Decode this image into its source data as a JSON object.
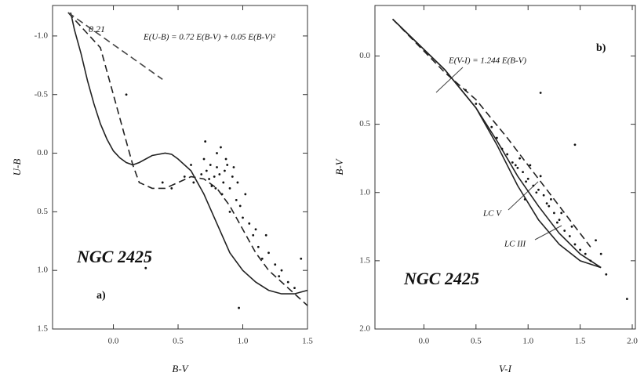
{
  "chart_data": [
    {
      "type": "scatter",
      "xlabel": "B-V",
      "ylabel": "U-B",
      "xlim": [
        -0.47,
        1.5
      ],
      "ylim": [
        -1.26,
        1.5
      ],
      "y_inverted": true,
      "xticks": [
        {
          "value": 0,
          "label": "0.0"
        },
        0.5,
        {
          "value": 1,
          "label": "1.0"
        },
        1.5
      ],
      "yticks": [
        {
          "value": -1,
          "label": "-1.0"
        },
        -0.5,
        {
          "value": 0,
          "label": "0.0"
        },
        0.5,
        {
          "value": 1,
          "label": "1.0"
        },
        1.5
      ],
      "annotations": [
        "0.21",
        "E(U-B) = 0.72 E(B-V) + 0.05 E(B-V)²",
        "NGC 2425",
        "a)"
      ],
      "series": [
        {
          "mark": "line",
          "color": "#222",
          "dashed": false,
          "x": [
            -0.33,
            -0.3,
            -0.25,
            -0.2,
            -0.15,
            -0.1,
            -0.05,
            0.0,
            0.05,
            0.1,
            0.15,
            0.2,
            0.3,
            0.4,
            0.45,
            0.5,
            0.6,
            0.7,
            0.8,
            0.9,
            1.0,
            1.1,
            1.2,
            1.3,
            1.4,
            1.5
          ],
          "values": [
            -1.2,
            -1.05,
            -0.85,
            -0.62,
            -0.42,
            -0.25,
            -0.12,
            -0.02,
            0.04,
            0.08,
            0.1,
            0.08,
            0.02,
            0.0,
            0.01,
            0.05,
            0.15,
            0.35,
            0.6,
            0.85,
            1.0,
            1.1,
            1.17,
            1.2,
            1.2,
            1.17
          ]
        },
        {
          "mark": "line",
          "color": "#222",
          "dashed": true,
          "x": [
            -0.35,
            -0.1,
            0.0,
            0.1,
            0.15,
            0.2,
            0.3,
            0.4,
            0.5,
            0.6,
            0.7,
            0.8,
            0.9,
            1.0,
            1.1,
            1.2,
            1.3,
            1.4,
            1.5
          ],
          "values": [
            -1.2,
            -0.9,
            -0.5,
            -0.1,
            0.1,
            0.25,
            0.3,
            0.3,
            0.25,
            0.2,
            0.22,
            0.3,
            0.45,
            0.65,
            0.85,
            1.0,
            1.1,
            1.2,
            1.3
          ]
        },
        {
          "mark": "line",
          "color": "#444",
          "dashed": true,
          "x": [
            -0.35,
            0.38
          ],
          "values": [
            -1.2,
            -0.63
          ]
        },
        {
          "mark": "point",
          "color": "#111",
          "x": [
            0.72,
            0.75,
            0.78,
            0.8,
            0.82,
            0.85,
            0.88,
            0.9,
            0.7,
            0.76,
            0.84,
            0.92,
            0.95,
            0.98,
            0.8,
            0.86,
            0.74,
            0.9,
            1.0,
            1.02,
            1.05,
            1.08,
            1.1,
            0.96,
            0.87,
            0.79,
            0.68,
            0.62,
            0.55,
            0.45,
            0.38,
            1.12,
            1.15,
            1.2,
            1.25,
            1.3,
            1.35,
            1.4,
            1.18,
            1.28,
            0.93,
            0.83,
            0.1,
            0.25,
            0.97,
            0.71,
            1.45,
            0.6
          ],
          "values": [
            0.15,
            0.1,
            0.2,
            0.12,
            0.18,
            0.25,
            0.1,
            0.3,
            0.05,
            0.28,
            0.35,
            0.2,
            0.4,
            0.45,
            0.0,
            0.15,
            0.22,
            0.5,
            0.55,
            0.35,
            0.6,
            0.7,
            0.65,
            0.25,
            0.05,
            0.3,
            0.18,
            0.25,
            0.2,
            0.3,
            0.25,
            0.8,
            0.9,
            0.85,
            0.95,
            1.0,
            1.1,
            1.15,
            0.7,
            1.05,
            0.12,
            -0.05,
            -0.5,
            0.98,
            1.32,
            -0.1,
            0.9,
            0.1
          ]
        }
      ]
    },
    {
      "type": "scatter",
      "xlabel": "V-I",
      "ylabel": "B-V",
      "xlim": [
        -0.47,
        2.03
      ],
      "ylim": [
        -0.37,
        2.0
      ],
      "y_inverted": true,
      "xticks": [
        {
          "value": 0,
          "label": "0.0"
        },
        0.5,
        {
          "value": 1,
          "label": "1.0"
        },
        1.5,
        {
          "value": 2,
          "label": "2.0"
        }
      ],
      "yticks": [
        {
          "value": 0,
          "label": "0.0"
        },
        0.5,
        {
          "value": 1,
          "label": "1.0"
        },
        1.5,
        {
          "value": 2,
          "label": "2.0"
        }
      ],
      "annotations": [
        "E(V-I) = 1.244 E(B-V)",
        "b)",
        "NGC 2425",
        "LC V",
        "LC III"
      ],
      "series": [
        {
          "mark": "line",
          "color": "#222",
          "dashed": true,
          "x": [
            -0.3,
            0.2,
            0.5,
            0.8,
            1.0,
            1.2,
            1.4,
            1.6
          ],
          "values": [
            -0.27,
            0.12,
            0.32,
            0.6,
            0.8,
            1.0,
            1.2,
            1.4
          ]
        },
        {
          "mark": "line",
          "color": "#222",
          "dashed": false,
          "x": [
            -0.3,
            0.2,
            0.5,
            0.7,
            0.9,
            1.1,
            1.3,
            1.5,
            1.7
          ],
          "values": [
            -0.27,
            0.1,
            0.38,
            0.62,
            0.88,
            1.1,
            1.3,
            1.45,
            1.55
          ]
        },
        {
          "mark": "line",
          "color": "#222",
          "dashed": false,
          "x": [
            -0.3,
            0.2,
            0.5,
            0.7,
            0.9,
            1.1,
            1.3,
            1.5,
            1.7
          ],
          "values": [
            -0.27,
            0.1,
            0.38,
            0.65,
            0.95,
            1.2,
            1.38,
            1.5,
            1.55
          ]
        },
        {
          "mark": "point",
          "color": "#111",
          "x": [
            0.7,
            0.75,
            0.8,
            0.85,
            0.9,
            0.95,
            1.0,
            1.05,
            1.1,
            1.15,
            1.2,
            1.25,
            1.3,
            1.35,
            1.4,
            1.45,
            1.5,
            1.55,
            1.6,
            0.88,
            0.98,
            1.08,
            1.18,
            1.28,
            0.92,
            1.02,
            1.12,
            1.22,
            1.32,
            1.42,
            0.65,
            0.5,
            0.4,
            1.7,
            1.75,
            1.12,
            1.45,
            1.95,
            1.65,
            0.97
          ],
          "values": [
            0.6,
            0.68,
            0.72,
            0.78,
            0.82,
            0.85,
            0.9,
            0.95,
            0.98,
            1.02,
            1.1,
            1.15,
            1.2,
            1.28,
            1.32,
            1.38,
            1.42,
            1.45,
            1.5,
            0.8,
            0.92,
            1.0,
            1.08,
            1.22,
            0.75,
            0.8,
            0.88,
            1.05,
            1.15,
            1.25,
            0.52,
            0.35,
            0.25,
            1.45,
            1.6,
            0.27,
            0.65,
            1.78,
            1.35,
            1.05
          ]
        }
      ]
    }
  ]
}
